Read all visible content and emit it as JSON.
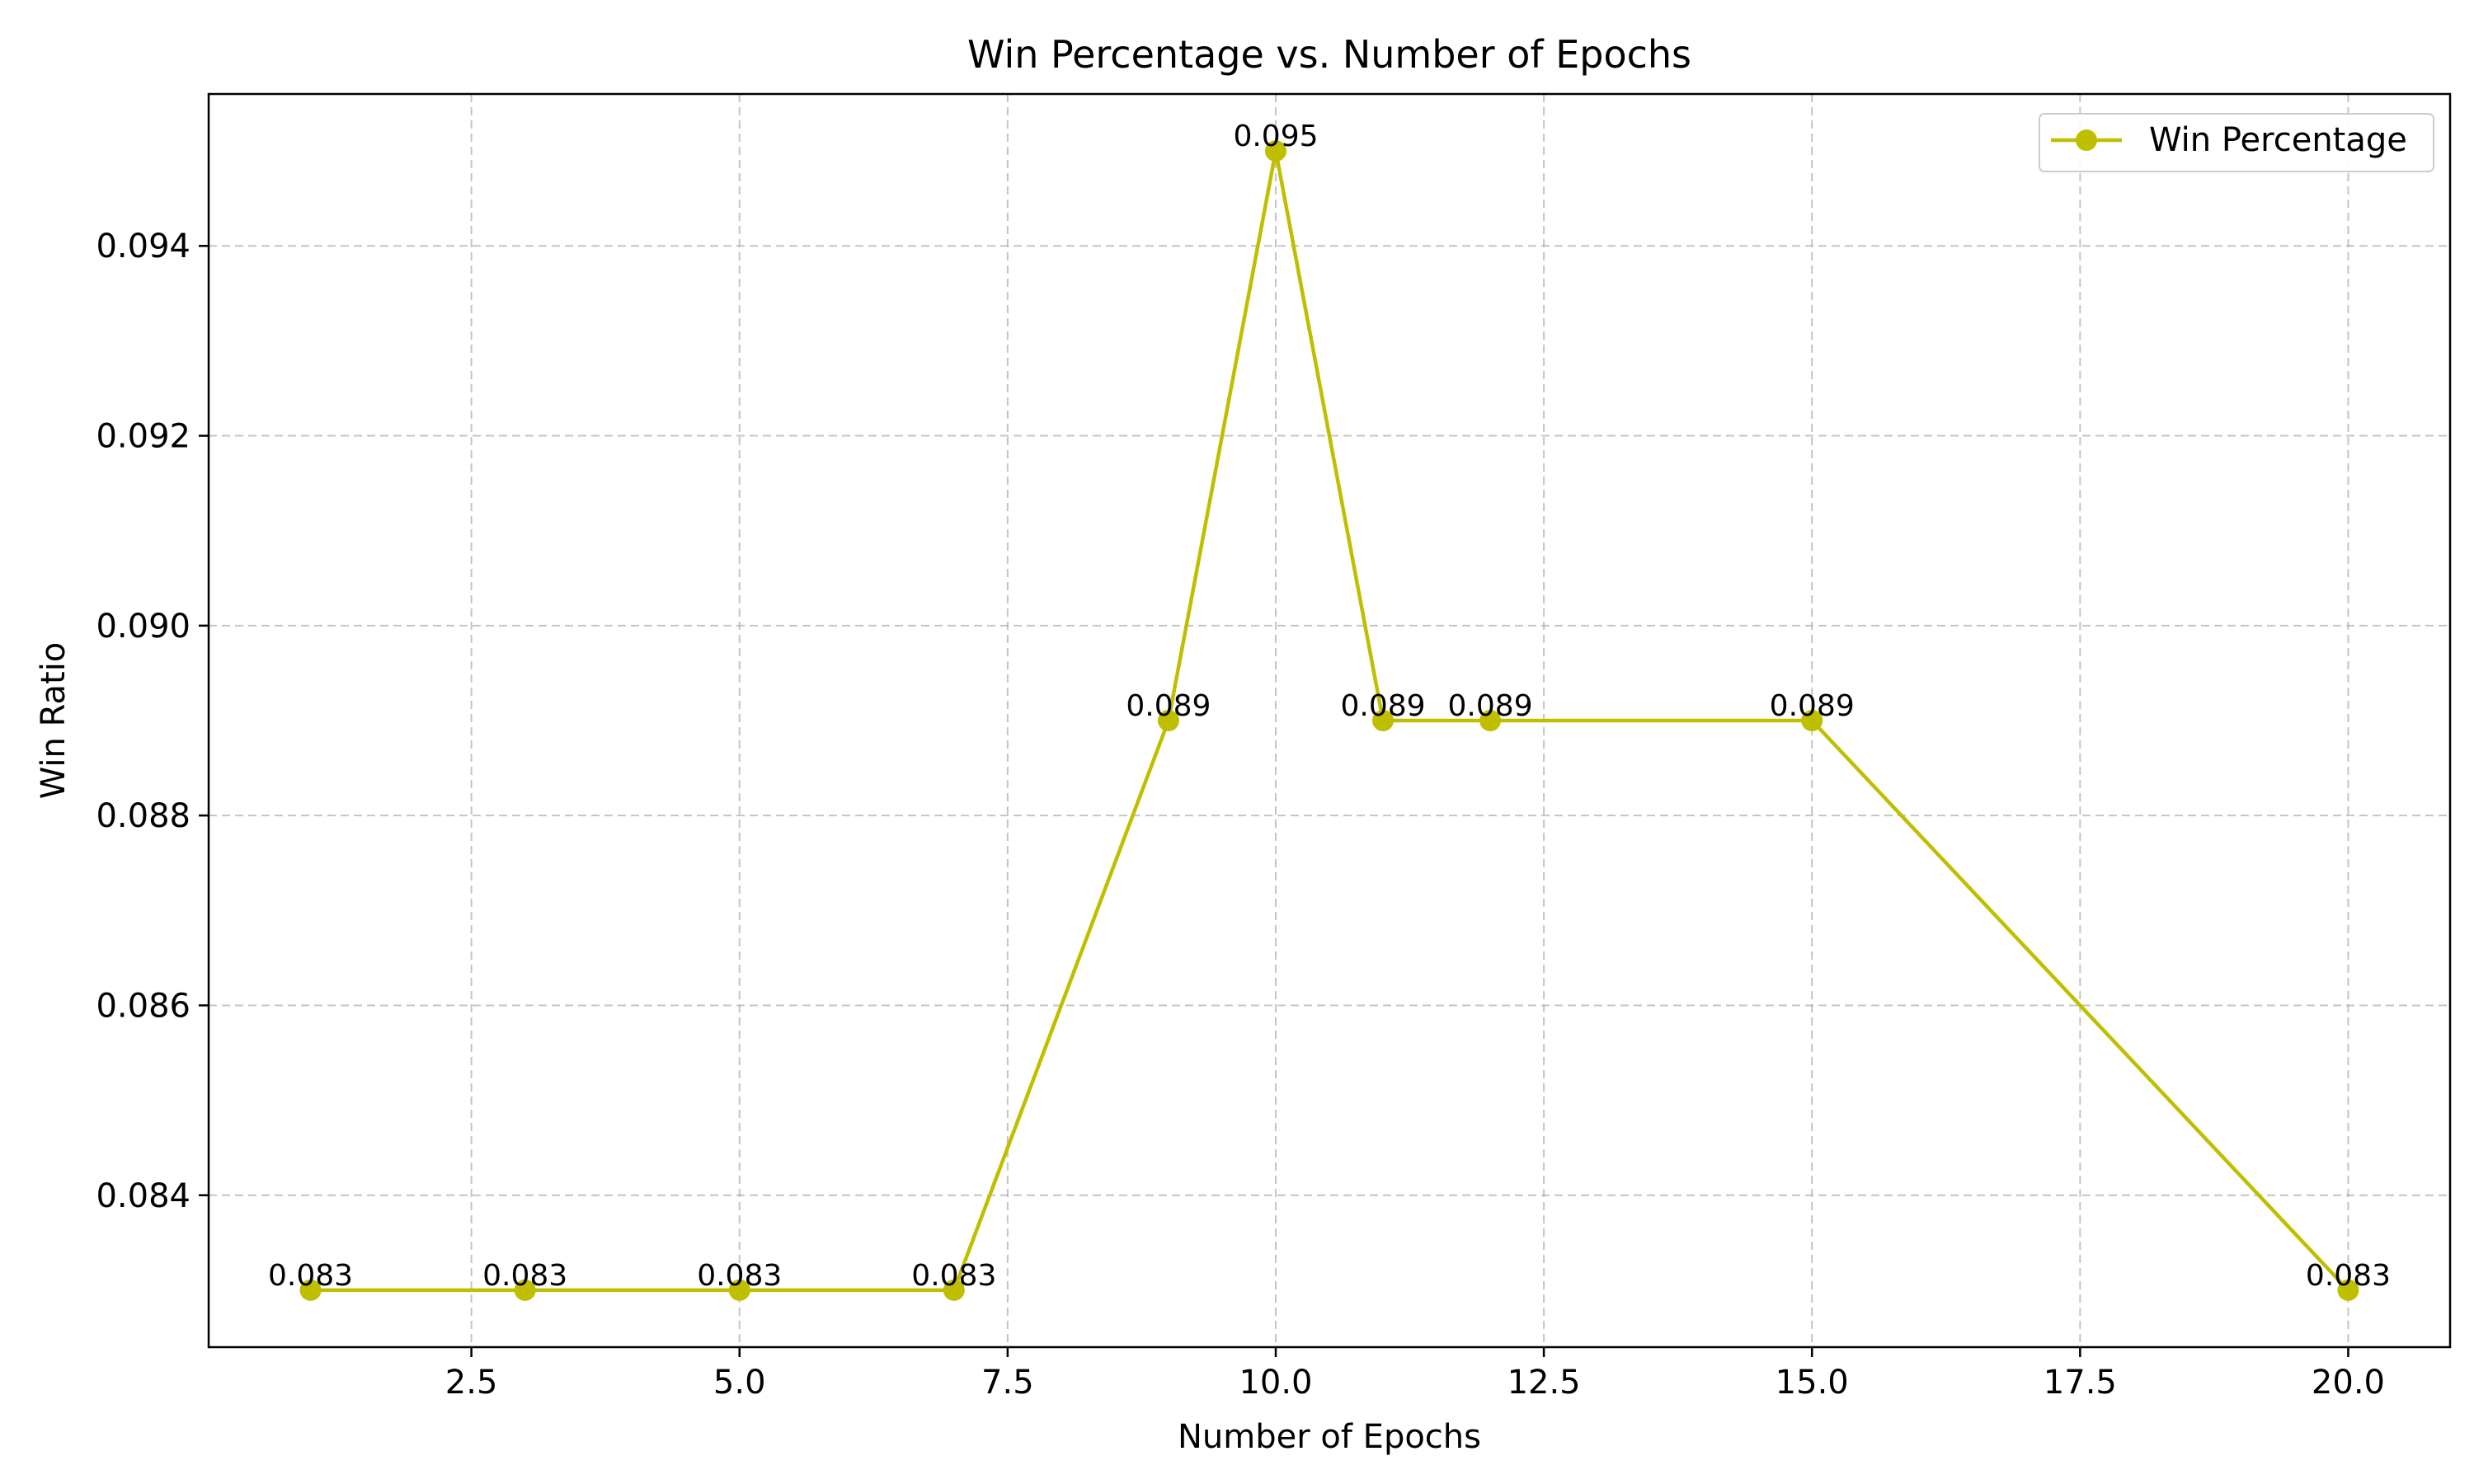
{
  "chart_data": {
    "type": "line",
    "title": "Win Percentage vs. Number of Epochs",
    "xlabel": "Number of Epochs",
    "ylabel": "Win Ratio",
    "xlim": [
      0.05,
      20.95
    ],
    "ylim": [
      0.0824,
      0.0956
    ],
    "x_ticks": [
      2.5,
      5.0,
      7.5,
      10.0,
      12.5,
      15.0,
      17.5,
      20.0
    ],
    "x_tick_labels": [
      "2.5",
      "5.0",
      "7.5",
      "10.0",
      "12.5",
      "15.0",
      "17.5",
      "20.0"
    ],
    "y_ticks": [
      0.084,
      0.086,
      0.088,
      0.09,
      0.092,
      0.094
    ],
    "y_tick_labels": [
      "0.084",
      "0.086",
      "0.088",
      "0.090",
      "0.092",
      "0.094"
    ],
    "grid": true,
    "grid_style": "dashed",
    "legend_position": "top-right",
    "series": [
      {
        "name": "Win Percentage",
        "color": "#bfbf00",
        "marker": "circle",
        "x": [
          1,
          3,
          5,
          7,
          9,
          10,
          11,
          12,
          15,
          20
        ],
        "y": [
          0.083,
          0.083,
          0.083,
          0.083,
          0.089,
          0.095,
          0.089,
          0.089,
          0.089,
          0.083
        ],
        "data_labels": [
          "0.083",
          "0.083",
          "0.083",
          "0.083",
          "0.089",
          "0.095",
          "0.089",
          "0.089",
          "0.089",
          "0.083"
        ]
      }
    ]
  }
}
